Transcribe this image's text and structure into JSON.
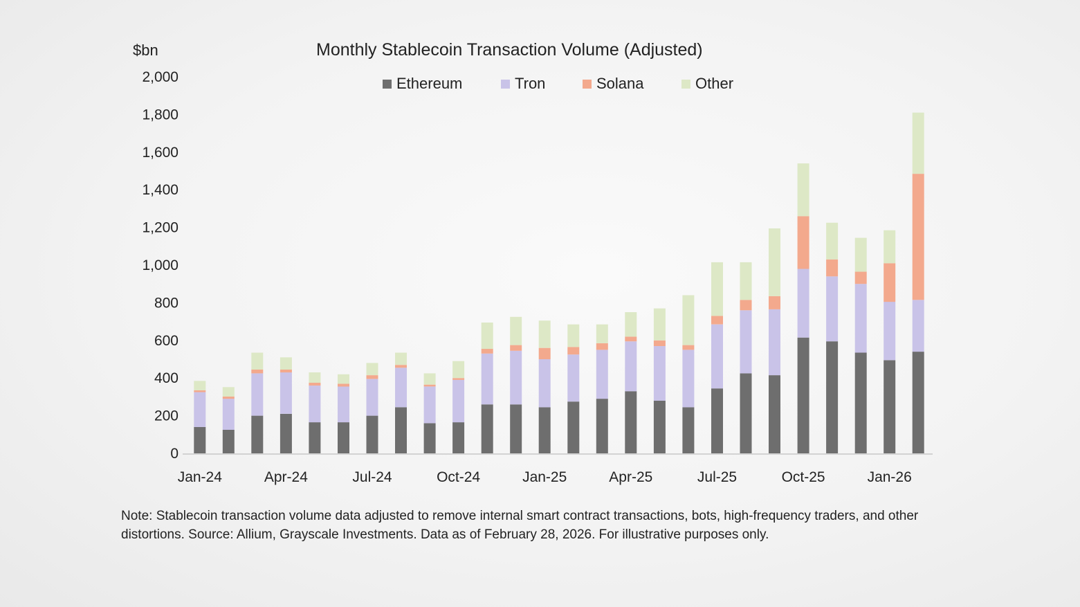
{
  "unit_label": "$bn",
  "note": "Note: Stablecoin transaction volume data adjusted to remove internal smart contract transactions, bots, high-frequency traders, and other distortions. Source: Allium, Grayscale Investments. Data as of February 28, 2026. For illustrative purposes only.",
  "colors": {
    "ethereum": "#6e6e6e",
    "tron": "#c9c3e8",
    "solana": "#f3a98d",
    "other": "#dde8c6",
    "axis": "#c8c8c8"
  },
  "chart_data": {
    "type": "bar",
    "stacked": true,
    "title": "Monthly Stablecoin Transaction Volume (Adjusted)",
    "ylabel": "$bn",
    "xlabel": "",
    "ylim": [
      0,
      2000
    ],
    "yticks": [
      0,
      200,
      400,
      600,
      800,
      1000,
      1200,
      1400,
      1600,
      1800,
      2000
    ],
    "ytick_labels": [
      "0",
      "200",
      "400",
      "600",
      "800",
      "1,000",
      "1,200",
      "1,400",
      "1,600",
      "1,800",
      "2,000"
    ],
    "xtick_labels": [
      "Jan-24",
      "Apr-24",
      "Jul-24",
      "Oct-24",
      "Jan-25",
      "Apr-25",
      "Jul-25",
      "Oct-25",
      "Jan-26"
    ],
    "legend_position": "top-center",
    "grid": false,
    "categories": [
      "Jan-24",
      "Feb-24",
      "Mar-24",
      "Apr-24",
      "May-24",
      "Jun-24",
      "Jul-24",
      "Aug-24",
      "Sep-24",
      "Oct-24",
      "Nov-24",
      "Dec-24",
      "Jan-25",
      "Feb-25",
      "Mar-25",
      "Apr-25",
      "May-25",
      "Jun-25",
      "Jul-25",
      "Aug-25",
      "Sep-25",
      "Oct-25",
      "Nov-25",
      "Dec-25",
      "Jan-26",
      "Feb-26"
    ],
    "series": [
      {
        "name": "Ethereum",
        "color_key": "ethereum",
        "values": [
          140,
          125,
          200,
          210,
          165,
          165,
          200,
          245,
          160,
          165,
          260,
          260,
          245,
          275,
          290,
          330,
          280,
          245,
          345,
          425,
          415,
          615,
          595,
          535,
          495,
          540
        ]
      },
      {
        "name": "Tron",
        "color_key": "tron",
        "values": [
          185,
          165,
          225,
          220,
          195,
          190,
          195,
          210,
          195,
          225,
          270,
          285,
          255,
          250,
          260,
          265,
          290,
          305,
          340,
          335,
          350,
          365,
          345,
          365,
          310,
          275
        ]
      },
      {
        "name": "Solana",
        "color_key": "solana",
        "values": [
          10,
          12,
          20,
          15,
          15,
          15,
          20,
          15,
          10,
          10,
          25,
          30,
          60,
          40,
          35,
          25,
          30,
          25,
          45,
          55,
          70,
          280,
          90,
          65,
          205,
          670
        ]
      },
      {
        "name": "Other",
        "color_key": "other",
        "values": [
          50,
          50,
          90,
          65,
          55,
          50,
          65,
          65,
          60,
          90,
          140,
          150,
          145,
          120,
          100,
          130,
          170,
          265,
          285,
          200,
          360,
          280,
          195,
          180,
          175,
          325
        ]
      }
    ]
  }
}
